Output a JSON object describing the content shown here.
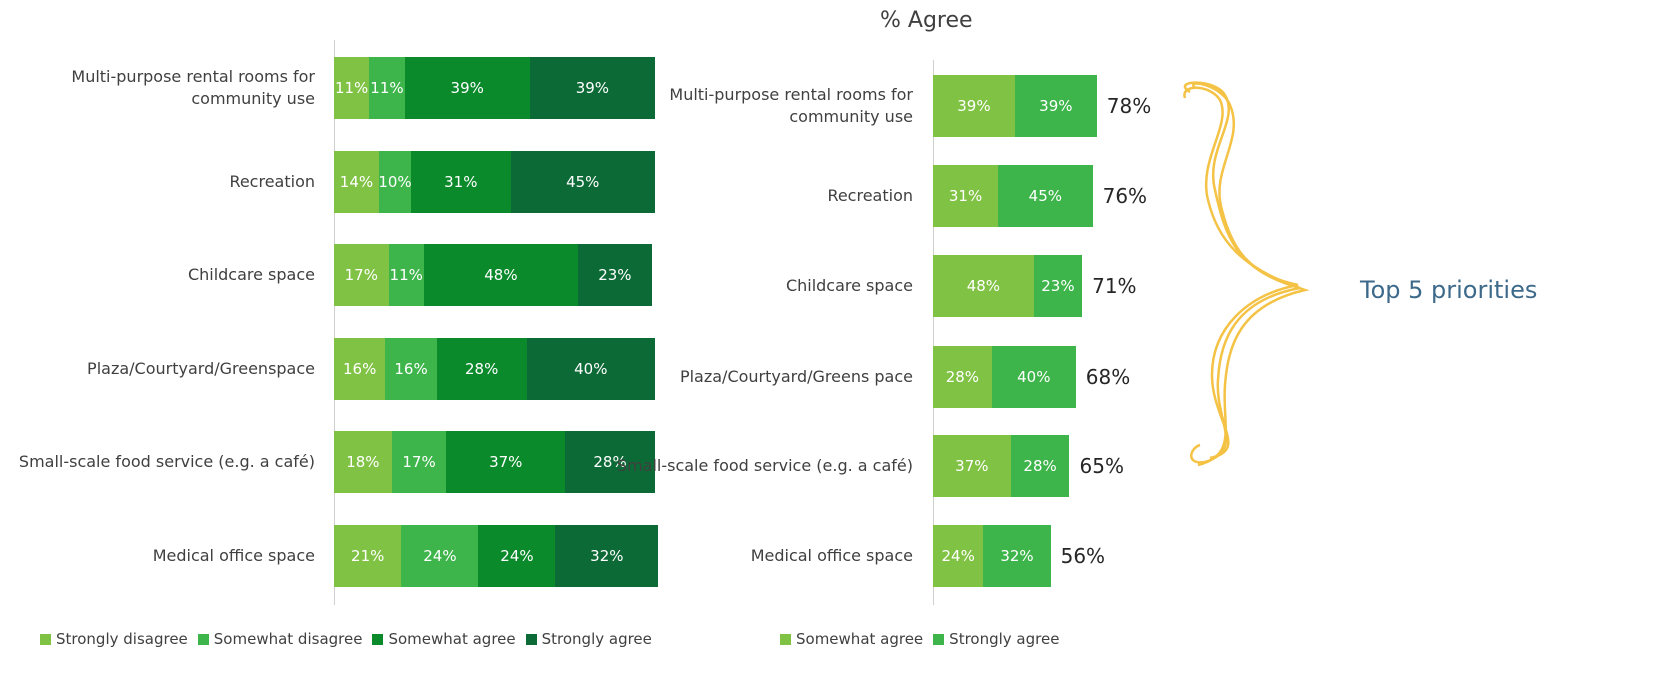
{
  "chart_data": [
    {
      "type": "stacked-bar-horizontal",
      "categories": [
        "Multi-purpose rental rooms for community use",
        "Recreation",
        "Childcare space",
        "Plaza/Courtyard/Greenspace",
        "Small-scale food service (e.g. a café)",
        "Medical office space"
      ],
      "series": [
        {
          "name": "Strongly disagree",
          "color": "#80c244",
          "values": [
            11,
            14,
            17,
            16,
            18,
            21
          ],
          "value_labels": [
            "11%",
            "14%",
            "17%",
            "16%",
            "18%",
            "21%"
          ]
        },
        {
          "name": "Somewhat disagree",
          "color": "#3db54a",
          "values": [
            11,
            10,
            11,
            16,
            17,
            24
          ],
          "value_labels": [
            "11%",
            "10%",
            "11%",
            "16%",
            "17%",
            "24%"
          ]
        },
        {
          "name": "Somewhat agree",
          "color": "#0b8a2c",
          "values": [
            39,
            31,
            48,
            28,
            37,
            24
          ],
          "value_labels": [
            "39%",
            "31%",
            "48%",
            "28%",
            "37%",
            "24%"
          ]
        },
        {
          "name": "Strongly agree",
          "color": "#0c6a36",
          "values": [
            39,
            45,
            23,
            40,
            28,
            32
          ],
          "value_labels": [
            "39%",
            "45%",
            "23%",
            "40%",
            "28%",
            "32%"
          ]
        }
      ],
      "legend": "bottom"
    },
    {
      "type": "stacked-bar-horizontal",
      "title": "% Agree",
      "categories": [
        "Multi-purpose rental rooms for community use",
        "Recreation",
        "Childcare space",
        "Plaza/Courtyard/Greens pace",
        "Small-scale food service (e.g. a café)",
        "Medical office space"
      ],
      "series": [
        {
          "name": "Somewhat agree",
          "color": "#80c244",
          "values": [
            39,
            31,
            48,
            28,
            37,
            24
          ],
          "value_labels": [
            "39%",
            "31%",
            "48%",
            "28%",
            "37%",
            "24%"
          ]
        },
        {
          "name": "Strongly agree",
          "color": "#3db54a",
          "values": [
            39,
            45,
            23,
            40,
            28,
            32
          ],
          "value_labels": [
            "39%",
            "45%",
            "23%",
            "40%",
            "28%",
            "32%"
          ]
        }
      ],
      "totals": [
        78,
        76,
        71,
        68,
        65,
        56
      ],
      "total_labels": [
        "78%",
        "76%",
        "71%",
        "68%",
        "65%",
        "56%"
      ],
      "annotation": "Top 5 priorities",
      "legend": "bottom"
    }
  ]
}
